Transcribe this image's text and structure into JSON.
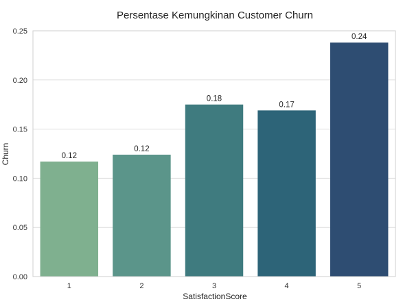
{
  "chart_data": {
    "type": "bar",
    "title": "Persentase Kemungkinan Customer Churn",
    "xlabel": "SatisfactionScore",
    "ylabel": "Churn",
    "categories": [
      "1",
      "2",
      "3",
      "4",
      "5"
    ],
    "values": [
      0.117,
      0.124,
      0.175,
      0.169,
      0.238
    ],
    "data_labels": [
      "0.12",
      "0.12",
      "0.18",
      "0.17",
      "0.24"
    ],
    "ylim": [
      0,
      0.25
    ],
    "yticks": [
      "0.00",
      "0.05",
      "0.10",
      "0.15",
      "0.20",
      "0.25"
    ],
    "ytick_values": [
      0,
      0.05,
      0.1,
      0.15,
      0.2,
      0.25
    ],
    "grid": "horizontal",
    "colors": [
      "#7fb08f",
      "#5b958a",
      "#3f7b7f",
      "#2d6478",
      "#2e4d72"
    ]
  }
}
